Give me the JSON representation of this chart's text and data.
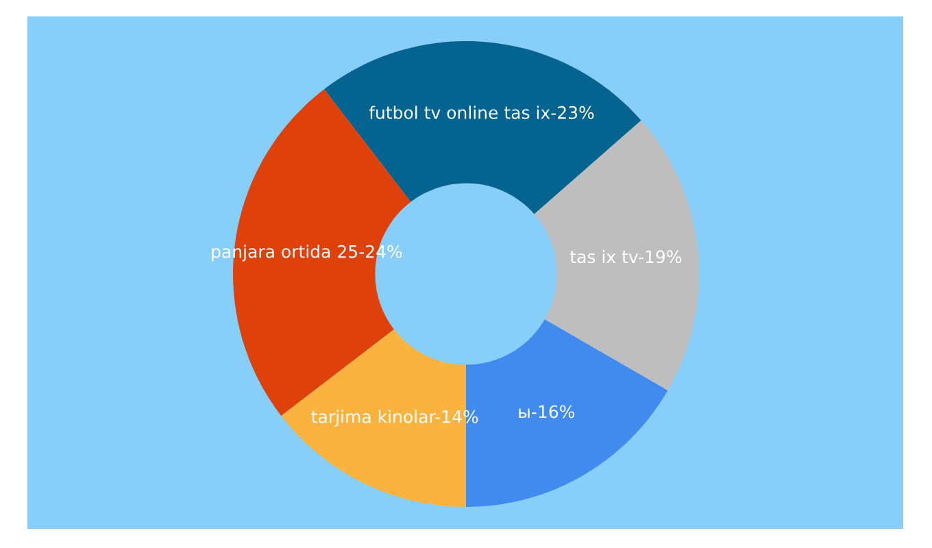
{
  "chart_data": {
    "type": "donut",
    "categories": [
      "futbol tv online tas ix",
      "tas ix tv",
      "ы",
      "tarjima kinolar",
      "panjara ortida 25"
    ],
    "values": [
      23,
      19,
      16,
      14,
      24
    ],
    "value_labels": [
      "23%",
      "19%",
      "16%",
      "14%",
      "24%"
    ],
    "colors": [
      "#05638f",
      "#bebebe",
      "#418bef",
      "#fbb33f",
      "#df410a"
    ]
  }
}
